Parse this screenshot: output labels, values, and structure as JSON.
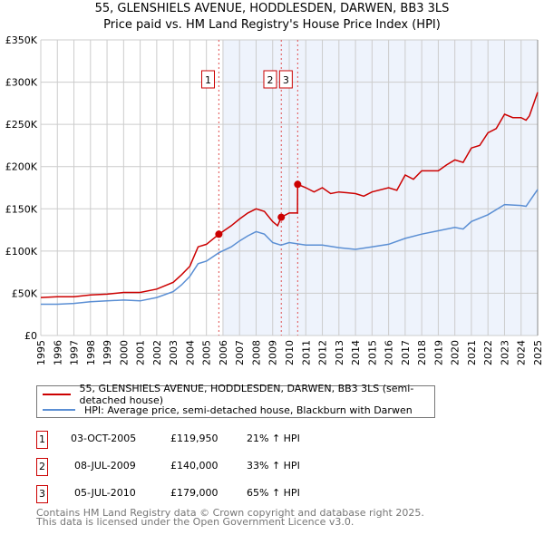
{
  "chart_data": {
    "type": "line",
    "title": "55, GLENSHIELS AVENUE, HODDLESDEN, DARWEN, BB3 3LS",
    "subtitle": "Price paid vs. HM Land Registry's House Price Index (HPI)",
    "xlim": [
      1995,
      2025
    ],
    "ylim": [
      0,
      350000
    ],
    "yticks": [
      0,
      50000,
      100000,
      150000,
      200000,
      250000,
      300000,
      350000
    ],
    "ytick_labels": [
      "£0",
      "£50K",
      "£100K",
      "£150K",
      "£200K",
      "£250K",
      "£300K",
      "£350K"
    ],
    "xtick_labels": [
      "1995",
      "1996",
      "1997",
      "1998",
      "1999",
      "2000",
      "2001",
      "2002",
      "2003",
      "2004",
      "2005",
      "2006",
      "2007",
      "2008",
      "2009",
      "2010",
      "2011",
      "2012",
      "2013",
      "2014",
      "2015",
      "2016",
      "2017",
      "2018",
      "2019",
      "2020",
      "2021",
      "2022",
      "2023",
      "2024",
      "2025"
    ],
    "grid": true,
    "colors": {
      "property": "#cc0000",
      "hpi": "#5b8fd4",
      "shade": "#eef3fc"
    },
    "series": [
      {
        "name": "55, GLENSHIELS AVENUE, HODDLESDEN, DARWEN, BB3 3LS (semi-detached house)",
        "x": [
          1995,
          1996,
          1997,
          1998,
          1999,
          2000,
          2001,
          2002,
          2003,
          2003.5,
          2004,
          2004.5,
          2005,
          2005.75,
          2006.5,
          2007,
          2007.5,
          2008,
          2008.5,
          2009,
          2009.3,
          2009.52,
          2010,
          2010.5,
          2010.51,
          2011,
          2011.5,
          2012,
          2012.5,
          2013,
          2014,
          2014.5,
          2015,
          2016,
          2016.5,
          2017,
          2017.5,
          2018,
          2019,
          2019.5,
          2020,
          2020.5,
          2021,
          2021.5,
          2022,
          2022.5,
          2023,
          2023.5,
          2024,
          2024.3,
          2024.5,
          2025
        ],
        "y": [
          45000,
          46000,
          46000,
          48000,
          49000,
          51000,
          51000,
          55000,
          63000,
          72000,
          82000,
          105000,
          108000,
          119950,
          130000,
          138000,
          145000,
          150000,
          147000,
          135000,
          130000,
          140000,
          145000,
          145000,
          179000,
          175000,
          170000,
          175000,
          168000,
          170000,
          168000,
          165000,
          170000,
          175000,
          172000,
          190000,
          185000,
          195000,
          195000,
          202000,
          208000,
          205000,
          222000,
          225000,
          240000,
          245000,
          262000,
          258000,
          258000,
          255000,
          260000,
          288000
        ]
      },
      {
        "name": "HPI: Average price, semi-detached house, Blackburn with Darwen",
        "x": [
          1995,
          1996,
          1997,
          1998,
          1999,
          2000,
          2001,
          2002,
          2003,
          2003.5,
          2004,
          2004.5,
          2005,
          2005.75,
          2006.5,
          2007,
          2007.5,
          2008,
          2008.5,
          2009,
          2009.5,
          2010,
          2011,
          2012,
          2013,
          2014,
          2015,
          2016,
          2017,
          2018,
          2019,
          2020,
          2020.5,
          2021,
          2022,
          2023,
          2024,
          2024.3,
          2025
        ],
        "y": [
          37000,
          37000,
          38000,
          40000,
          41000,
          42000,
          41000,
          45000,
          52000,
          60000,
          70000,
          85000,
          88000,
          98000,
          105000,
          112000,
          118000,
          123000,
          120000,
          110000,
          107000,
          110000,
          107000,
          107000,
          104000,
          102000,
          105000,
          108000,
          115000,
          120000,
          124000,
          128000,
          126000,
          135000,
          143000,
          155000,
          154000,
          153000,
          173000
        ]
      }
    ],
    "sales": [
      {
        "label": "1",
        "x": 2005.75,
        "y": 119950
      },
      {
        "label": "2",
        "x": 2009.52,
        "y": 140000
      },
      {
        "label": "3",
        "x": 2010.51,
        "y": 179000
      }
    ]
  },
  "legend": {
    "property": "55, GLENSHIELS AVENUE, HODDLESDEN, DARWEN, BB3 3LS (semi-detached house)",
    "hpi": "HPI: Average price, semi-detached house, Blackburn with Darwen"
  },
  "sales_table": [
    {
      "num": "1",
      "date": "03-OCT-2005",
      "price": "£119,950",
      "hpi": "21% ↑ HPI"
    },
    {
      "num": "2",
      "date": "08-JUL-2009",
      "price": "£140,000",
      "hpi": "33% ↑ HPI"
    },
    {
      "num": "3",
      "date": "05-JUL-2010",
      "price": "£179,000",
      "hpi": "65% ↑ HPI"
    }
  ],
  "footer": {
    "line1": "Contains HM Land Registry data © Crown copyright and database right 2025.",
    "line2": "This data is licensed under the Open Government Licence v3.0."
  }
}
